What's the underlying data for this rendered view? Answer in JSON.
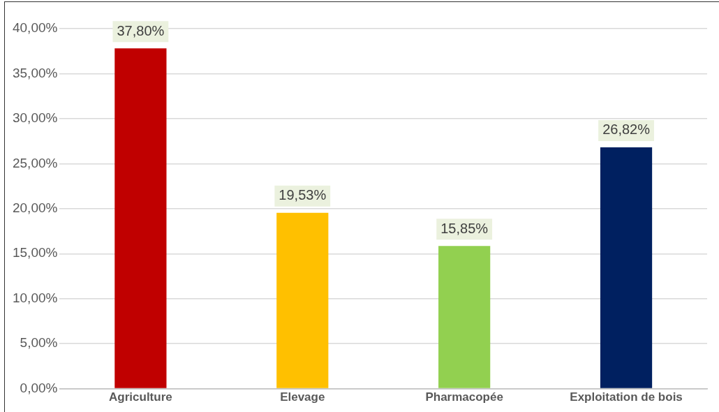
{
  "chart_data": {
    "type": "bar",
    "categories": [
      "Agriculture",
      "Elevage",
      "Pharmacopée",
      "Exploitation de bois"
    ],
    "values": [
      37.8,
      19.53,
      15.85,
      26.82
    ],
    "colors": [
      "#c00000",
      "#ffc000",
      "#92d050",
      "#002060"
    ],
    "value_labels": [
      "37,80%",
      "19,53%",
      "15,85%",
      "26,82%"
    ],
    "ylim": [
      0,
      40
    ],
    "yticks": [
      {
        "value": 0,
        "label": "0,00%"
      },
      {
        "value": 5,
        "label": "5,00%"
      },
      {
        "value": 10,
        "label": "10,00%"
      },
      {
        "value": 15,
        "label": "15,00%"
      },
      {
        "value": 20,
        "label": "20,00%"
      },
      {
        "value": 25,
        "label": "25,00%"
      },
      {
        "value": 30,
        "label": "30,00%"
      },
      {
        "value": 35,
        "label": "35,00%"
      },
      {
        "value": 40,
        "label": "40,00%"
      }
    ],
    "grid": "y",
    "legend": false
  }
}
